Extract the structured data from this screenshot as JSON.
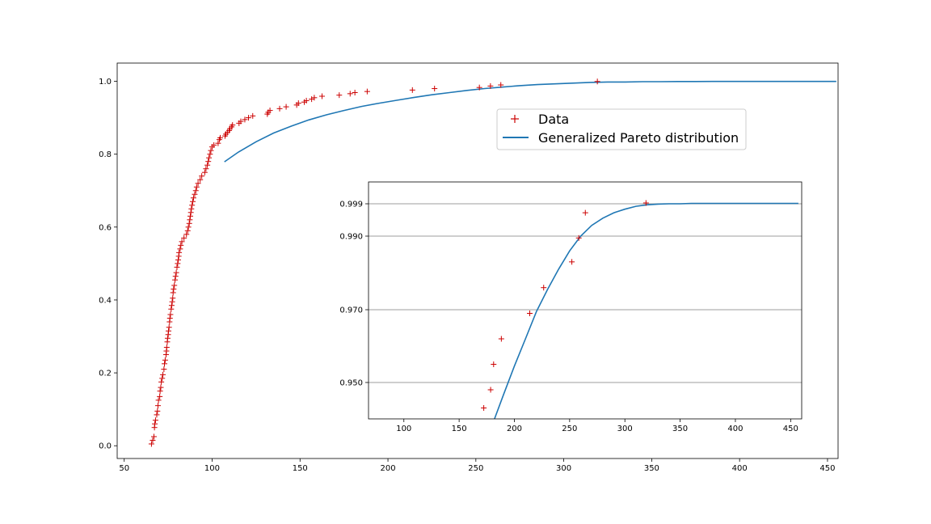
{
  "chart_data": [
    {
      "type": "scatter",
      "title": "",
      "xlabel": "",
      "ylabel": "",
      "xlim": [
        46,
        456
      ],
      "ylim": [
        -0.035,
        1.05
      ],
      "grid": false,
      "x_ticks": [
        "50",
        "100",
        "150",
        "200",
        "250",
        "300",
        "350",
        "400",
        "450"
      ],
      "y_ticks": [
        "0.0",
        "0.2",
        "0.4",
        "0.6",
        "0.8",
        "1.0"
      ],
      "legend": {
        "placement": "upper-right",
        "entries": [
          {
            "label": "Data",
            "marker": "+",
            "color": "#cc0000"
          },
          {
            "label": "Generalized Pareto distribution",
            "marker": "line",
            "color": "#1f77b4"
          }
        ]
      },
      "series": [
        {
          "name": "Data",
          "kind": "empirical-cdf",
          "color": "#cc0000",
          "x": [
            65.5,
            66.2,
            66.9,
            67.2,
            67.4,
            67.8,
            68.5,
            68.9,
            69.2,
            69.5,
            70.2,
            70.4,
            70.8,
            71.1,
            71.6,
            72.0,
            72.6,
            72.9,
            73.3,
            73.8,
            74.0,
            74.2,
            74.5,
            74.7,
            75.0,
            75.2,
            75.5,
            75.8,
            76.0,
            76.3,
            76.7,
            77.0,
            77.3,
            77.6,
            77.8,
            78.1,
            78.5,
            78.9,
            79.2,
            79.6,
            80.0,
            80.4,
            80.7,
            81.0,
            81.2,
            81.8,
            82.2,
            82.8,
            84.0,
            85.4,
            86.1,
            86.5,
            87.0,
            87.3,
            87.6,
            87.9,
            88.2,
            88.6,
            89.0,
            89.4,
            90.1,
            90.7,
            91.2,
            92.0,
            93.2,
            94.1,
            95.8,
            96.5,
            97.3,
            97.8,
            98.2,
            98.8,
            99.3,
            100.0,
            101.0,
            103.4,
            104.1,
            104.6,
            107.3,
            107.8,
            108.7,
            109.7,
            110.1,
            111.1,
            111.6,
            115.3,
            116.3,
            118.6,
            120.7,
            123.1,
            131.4,
            131.9,
            132.9,
            138.4,
            142.1,
            148.1,
            149.1,
            152.4,
            153.6,
            156.6,
            158.1,
            162.5,
            172.3,
            178.5,
            181.2,
            188.2,
            213.9,
            226.5,
            252.0,
            258.3,
            264.2,
            319.1
          ],
          "y": [
            0.005,
            0.015,
            0.025,
            0.05,
            0.06,
            0.07,
            0.085,
            0.095,
            0.11,
            0.125,
            0.135,
            0.15,
            0.16,
            0.175,
            0.185,
            0.195,
            0.21,
            0.225,
            0.235,
            0.25,
            0.26,
            0.27,
            0.285,
            0.295,
            0.305,
            0.315,
            0.325,
            0.34,
            0.35,
            0.36,
            0.375,
            0.385,
            0.395,
            0.405,
            0.42,
            0.43,
            0.44,
            0.455,
            0.465,
            0.475,
            0.49,
            0.5,
            0.51,
            0.52,
            0.53,
            0.54,
            0.55,
            0.56,
            0.57,
            0.58,
            0.59,
            0.6,
            0.61,
            0.62,
            0.63,
            0.64,
            0.65,
            0.66,
            0.67,
            0.68,
            0.69,
            0.7,
            0.71,
            0.72,
            0.73,
            0.74,
            0.75,
            0.76,
            0.77,
            0.78,
            0.79,
            0.8,
            0.81,
            0.82,
            0.825,
            0.83,
            0.84,
            0.845,
            0.85,
            0.855,
            0.86,
            0.865,
            0.87,
            0.875,
            0.88,
            0.885,
            0.89,
            0.895,
            0.9,
            0.905,
            0.91,
            0.915,
            0.92,
            0.925,
            0.93,
            0.935,
            0.94,
            0.943,
            0.947,
            0.951,
            0.955,
            0.959,
            0.962,
            0.966,
            0.969,
            0.972,
            0.976,
            0.98,
            0.983,
            0.987,
            0.99,
            0.9995
          ]
        },
        {
          "name": "Generalized Pareto distribution",
          "kind": "fitted-cdf",
          "color": "#1f77b4",
          "x": [
            107,
            115,
            125,
            135,
            145,
            155,
            165,
            175,
            185,
            195,
            205,
            215,
            225,
            235,
            245,
            255,
            265,
            275,
            285,
            295,
            305,
            315,
            325,
            335,
            345,
            355,
            365,
            375,
            385,
            395,
            405,
            415,
            425,
            435,
            445,
            455
          ],
          "y": [
            0.779,
            0.806,
            0.834,
            0.858,
            0.877,
            0.894,
            0.908,
            0.92,
            0.931,
            0.94,
            0.948,
            0.956,
            0.963,
            0.969,
            0.975,
            0.98,
            0.984,
            0.988,
            0.991,
            0.993,
            0.995,
            0.997,
            0.998,
            0.998,
            0.999,
            0.999,
            0.9995,
            0.9995,
            0.9996,
            0.9996,
            0.9997,
            0.9997,
            0.9997,
            0.9997,
            0.9997,
            0.9997
          ]
        }
      ]
    },
    {
      "type": "scatter",
      "title": "",
      "xlabel": "",
      "ylabel": "",
      "xlim": [
        68,
        460
      ],
      "ylim_display": [
        0.94,
        1.0
      ],
      "scale": "tail-transformed probability axis",
      "grid": "horizontal",
      "x_ticks": [
        "100",
        "150",
        "200",
        "250",
        "300",
        "350",
        "400",
        "450"
      ],
      "y_ticks": [
        "0.950",
        "0.970",
        "0.990",
        "0.999"
      ],
      "series": [
        {
          "name": "Data",
          "color": "#cc0000",
          "x": [
            172.3,
            178.5,
            181.2,
            188.2,
            213.9,
            226.5,
            252.0,
            258.3,
            264.2,
            319.1
          ],
          "y": [
            0.943,
            0.948,
            0.955,
            0.962,
            0.969,
            0.976,
            0.983,
            0.9895,
            0.9965,
            0.9992
          ]
        },
        {
          "name": "Generalized Pareto distribution",
          "color": "#1f77b4",
          "x": [
            182,
            190,
            200,
            210,
            220,
            230,
            240,
            250,
            260,
            270,
            280,
            290,
            300,
            310,
            320,
            330,
            340,
            350,
            360,
            370,
            380,
            390,
            400,
            410,
            420,
            430,
            440,
            450,
            457
          ],
          "y": [
            0.94,
            0.9465,
            0.9545,
            0.962,
            0.9695,
            0.9755,
            0.981,
            0.986,
            0.99,
            0.993,
            0.995,
            0.9965,
            0.9975,
            0.9983,
            0.9987,
            0.9989,
            0.999,
            0.999,
            0.9991,
            0.9991,
            0.9991,
            0.9991,
            0.9991,
            0.9991,
            0.9991,
            0.9991,
            0.9991,
            0.9991,
            0.9991
          ]
        }
      ]
    }
  ]
}
